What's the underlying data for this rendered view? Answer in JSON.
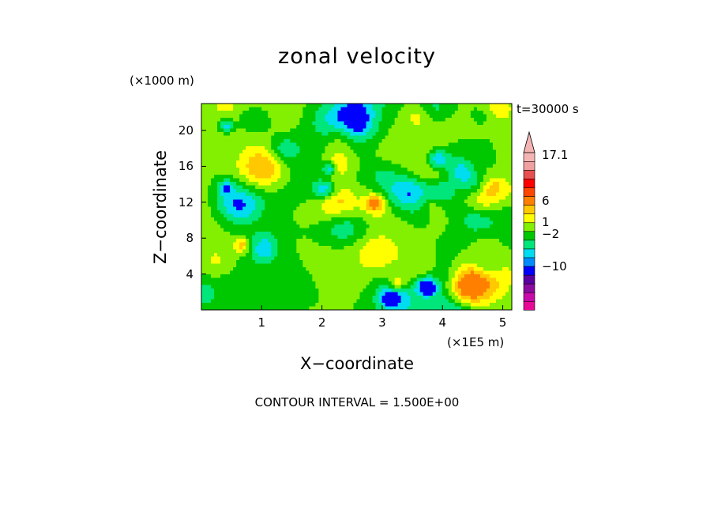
{
  "chart_data": {
    "type": "heatmap",
    "title": "zonal velocity",
    "xlabel": "X−coordinate",
    "ylabel": "Z−coordinate",
    "x_unit": "(×1E5 m)",
    "y_unit": "(×1000 m)",
    "time_label": "t=30000 s",
    "contour_interval_label": "CONTOUR INTERVAL = 1.500E+00",
    "xlim": [
      0,
      5.15
    ],
    "ylim": [
      0,
      23
    ],
    "x_ticks": [
      "1",
      "2",
      "3",
      "4",
      "5"
    ],
    "y_ticks": [
      "4",
      "8",
      "12",
      "16",
      "20"
    ],
    "colorbar": {
      "tick_labels": [
        "17.1",
        "6",
        "1",
        "−2",
        "−10"
      ],
      "colors": [
        "#e60a96",
        "#c80aaa",
        "#8c0aa0",
        "#5a00a0",
        "#0000ff",
        "#008cff",
        "#00dcf0",
        "#00e67a",
        "#00c800",
        "#82f000",
        "#ffff00",
        "#ffc800",
        "#ff7f00",
        "#ff4600",
        "#ff0000",
        "#e65050",
        "#f0a0a0",
        "#f5b4b4"
      ]
    },
    "field_levels_colors": [
      "#0000ff",
      "#00dcf0",
      "#00e67a",
      "#00c800",
      "#82f000",
      "#ffff00",
      "#ffc800",
      "#ff7f00"
    ]
  }
}
